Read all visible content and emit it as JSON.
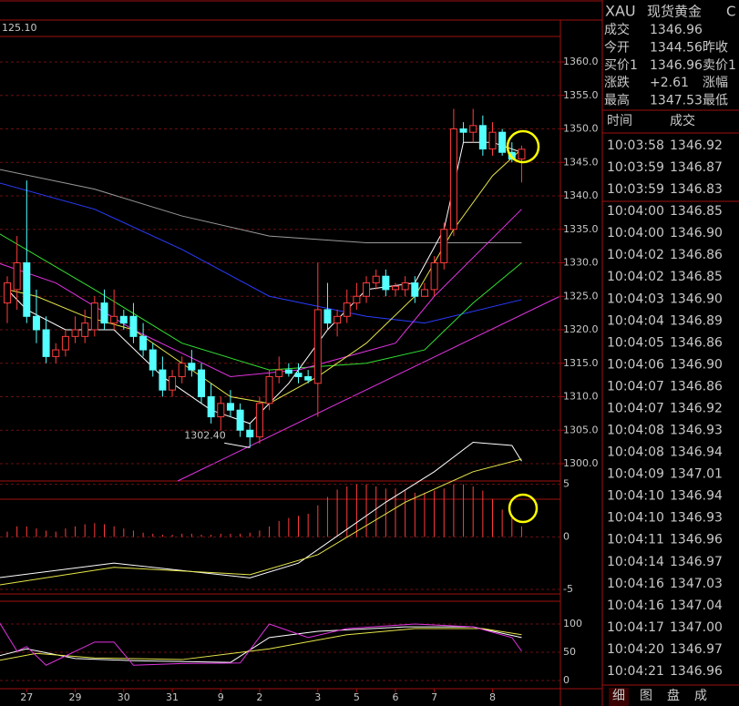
{
  "chart_data": {
    "type": "candlestick",
    "corner_label": "125.10",
    "low_annotation": {
      "label": "1302.40",
      "index": 25
    },
    "up_color": "#ff3c3c",
    "down_color": "#54ffff",
    "candles": [
      [
        1324,
        1328,
        1321,
        1327
      ],
      [
        1326,
        1334,
        1323,
        1330
      ],
      [
        1330,
        1342.3,
        1321,
        1322
      ],
      [
        1322,
        1326,
        1318,
        1320
      ],
      [
        1320,
        1322,
        1315,
        1316
      ],
      [
        1316,
        1318,
        1315,
        1317
      ],
      [
        1317,
        1320,
        1316,
        1319
      ],
      [
        1319,
        1322,
        1318,
        1320
      ],
      [
        1319,
        1323,
        1318,
        1321
      ],
      [
        1320,
        1325,
        1319,
        1324
      ],
      [
        1324,
        1326,
        1320,
        1321
      ],
      [
        1321,
        1326,
        1320,
        1322
      ],
      [
        1322,
        1323,
        1320,
        1321
      ],
      [
        1322,
        1324,
        1318,
        1319
      ],
      [
        1319,
        1321,
        1316,
        1317
      ],
      [
        1317,
        1318,
        1313,
        1314
      ],
      [
        1314,
        1316,
        1310,
        1311
      ],
      [
        1311,
        1314,
        1310,
        1313
      ],
      [
        1313,
        1316,
        1312,
        1315
      ],
      [
        1315,
        1317,
        1313,
        1314
      ],
      [
        1314,
        1315,
        1309,
        1310
      ],
      [
        1310,
        1312,
        1306,
        1307
      ],
      [
        1307,
        1310,
        1305,
        1309
      ],
      [
        1309,
        1311,
        1307,
        1308
      ],
      [
        1308,
        1309,
        1304,
        1305
      ],
      [
        1305,
        1306,
        1302.4,
        1304
      ],
      [
        1304,
        1310,
        1303,
        1309
      ],
      [
        1309,
        1314,
        1308,
        1313
      ],
      [
        1313,
        1316,
        1312,
        1314
      ],
      [
        1314,
        1315,
        1313,
        1313.5
      ],
      [
        1313.5,
        1315,
        1312,
        1313
      ],
      [
        1313,
        1314,
        1312,
        1312.5
      ],
      [
        1312,
        1330,
        1307,
        1323
      ],
      [
        1323,
        1327,
        1320,
        1321
      ],
      [
        1321,
        1323,
        1319,
        1322
      ],
      [
        1322,
        1326,
        1321,
        1324
      ],
      [
        1324,
        1327,
        1323,
        1325
      ],
      [
        1325,
        1328,
        1324,
        1327
      ],
      [
        1327,
        1329,
        1326,
        1328
      ],
      [
        1328,
        1329,
        1325,
        1326
      ],
      [
        1326,
        1327,
        1325,
        1326.5
      ],
      [
        1326,
        1328,
        1325,
        1327
      ],
      [
        1327,
        1328,
        1324,
        1325
      ],
      [
        1325,
        1327,
        1325,
        1326
      ],
      [
        1326,
        1331,
        1325,
        1330
      ],
      [
        1330,
        1336,
        1329,
        1335
      ],
      [
        1335,
        1353,
        1334,
        1350
      ],
      [
        1350,
        1351,
        1348,
        1349.5
      ],
      [
        1349.5,
        1353,
        1348,
        1350.5
      ],
      [
        1350.5,
        1352,
        1346,
        1347
      ],
      [
        1347,
        1351,
        1346,
        1349.5
      ],
      [
        1349.5,
        1350,
        1346,
        1346.5
      ],
      [
        1346.5,
        1348,
        1345,
        1345.5
      ],
      [
        1345.5,
        1347.5,
        1342,
        1346.96
      ]
    ],
    "ylim": [
      1300,
      1360
    ],
    "yticks": [
      {
        "value": 1300,
        "label": "1300.0"
      },
      {
        "value": 1305,
        "label": "1305.0"
      },
      {
        "value": 1310,
        "label": "1310.0"
      },
      {
        "value": 1315,
        "label": "1315.0"
      },
      {
        "value": 1320,
        "label": "1320.0"
      },
      {
        "value": 1325,
        "label": "1325.0"
      },
      {
        "value": 1330,
        "label": "1330.0"
      },
      {
        "value": 1335,
        "label": "1335.0"
      },
      {
        "value": 1340,
        "label": "1340.0"
      },
      {
        "value": 1345,
        "label": "1345.0"
      },
      {
        "value": 1350,
        "label": "1350.0"
      },
      {
        "value": 1355,
        "label": "1355.0"
      },
      {
        "value": 1360,
        "label": "1360.0"
      }
    ],
    "xticks": [
      {
        "value": 2,
        "label": "27"
      },
      {
        "value": 7,
        "label": "29"
      },
      {
        "value": 12,
        "label": "30"
      },
      {
        "value": 17,
        "label": "31"
      },
      {
        "value": 22,
        "label": "9"
      },
      {
        "value": 26,
        "label": "2"
      },
      {
        "value": 32,
        "label": "3"
      },
      {
        "value": 36,
        "label": "5"
      },
      {
        "value": 40,
        "label": "6"
      },
      {
        "value": 44,
        "label": "7"
      },
      {
        "value": 50,
        "label": "8"
      }
    ],
    "highlight_xtick": 4,
    "highlight_color": "#2ed12e",
    "ma_series": [
      {
        "color": "#9a9a9a",
        "x": [
          -1,
          9,
          18,
          27,
          37,
          46,
          53
        ],
        "values": [
          1344,
          1341,
          1337,
          1334,
          1333,
          1333,
          1333
        ]
      },
      {
        "color": "#2b3cff",
        "x": [
          -1,
          9,
          18,
          27,
          37,
          43,
          53
        ],
        "values": [
          1342,
          1338,
          1332,
          1325,
          1322,
          1321,
          1324.5
        ]
      },
      {
        "color": "#33e033",
        "x": [
          -1,
          9,
          18,
          27,
          37,
          43,
          48,
          53
        ],
        "values": [
          1334.5,
          1326,
          1318,
          1314,
          1315,
          1317,
          1324,
          1330
        ]
      },
      {
        "color": "#e033e0",
        "x": [
          -1,
          5,
          13,
          23,
          30,
          40,
          44,
          53
        ],
        "values": [
          1330,
          1327,
          1320,
          1313,
          1314,
          1318,
          1325,
          1338
        ]
      },
      {
        "color": "#e6e64a",
        "x": [
          0,
          3,
          8,
          13,
          18,
          23,
          27,
          32,
          37,
          42,
          46,
          50,
          53
        ],
        "values": [
          1326,
          1325,
          1322,
          1320,
          1315,
          1310,
          1309,
          1313,
          1318,
          1325,
          1335,
          1343,
          1347
        ]
      },
      {
        "color": "#ffffff",
        "x": [
          0,
          2,
          6,
          11,
          16,
          21,
          25,
          29,
          33,
          37,
          42,
          45,
          47,
          50,
          53
        ],
        "values": [
          1326,
          1323,
          1320,
          1320,
          1313,
          1308,
          1306,
          1312,
          1320,
          1326,
          1327,
          1335,
          1348,
          1348,
          1346.5
        ]
      }
    ],
    "macd": {
      "ylim": [
        -5,
        10
      ],
      "yticks": [
        -5,
        0,
        5
      ],
      "histogram": [
        0.5,
        1,
        1,
        0.8,
        0.6,
        0.5,
        0.8,
        1,
        1.2,
        1.3,
        1.2,
        1,
        0.8,
        0.6,
        0.4,
        0.3,
        0.2,
        0.2,
        0.3,
        0.3,
        0.2,
        0.2,
        0.3,
        0.3,
        0.3,
        0.4,
        0.6,
        1,
        1.5,
        1.8,
        2,
        2.2,
        3,
        3.8,
        4.5,
        4.8,
        5,
        5,
        4.8,
        4.6,
        4.6,
        4.4,
        4.2,
        4.2,
        4.4,
        4.6,
        5,
        5,
        4.8,
        4.4,
        3.6,
        2.6,
        1.8,
        1
      ],
      "lines": [
        {
          "color": "#ffffff",
          "x": [
            -1,
            11,
            25,
            30,
            39,
            44,
            48,
            52,
            53
          ],
          "values": [
            -3.9,
            -2.5,
            -3.9,
            -2.5,
            3.3,
            6.2,
            9,
            8.7,
            7.2
          ]
        },
        {
          "color": "#e6e64a",
          "x": [
            -1,
            11,
            25,
            32,
            41,
            48,
            53
          ],
          "values": [
            -4.6,
            -2.9,
            -3.6,
            -1.7,
            3.3,
            6.2,
            7.4
          ]
        }
      ]
    },
    "kdj": {
      "ylim": [
        0,
        120
      ],
      "yticks": [
        0,
        50,
        100
      ],
      "lines": [
        {
          "color": "#ffffff",
          "x": [
            -1,
            2,
            7,
            13,
            23,
            27,
            32,
            41,
            48,
            53
          ],
          "values": [
            43,
            56,
            39,
            35,
            32,
            76,
            87,
            95,
            95,
            76
          ]
        },
        {
          "color": "#e6e64a",
          "x": [
            -1,
            3,
            9,
            18,
            27,
            35,
            42,
            49,
            53
          ],
          "values": [
            35,
            48,
            40,
            37,
            56,
            81,
            92,
            92,
            81
          ]
        },
        {
          "color": "#e033e0",
          "x": [
            -1,
            1,
            2,
            4,
            9,
            11,
            13,
            18,
            24,
            27,
            31,
            35,
            42,
            48,
            52,
            53
          ],
          "values": [
            108,
            52,
            60,
            27,
            68,
            68,
            27,
            30,
            31,
            100,
            76,
            92,
            100,
            95,
            76,
            52
          ]
        }
      ]
    }
  },
  "quote_panel": {
    "header": {
      "symbol": "XAU",
      "name": "现货黄金",
      "extra": "C"
    },
    "rows": [
      [
        "成交",
        "1346.96",
        ""
      ],
      [
        "今开",
        "1344.56",
        "昨收"
      ],
      [
        "买价1",
        "1346.96",
        "卖价1"
      ],
      [
        "涨跌",
        "+2.61",
        "涨幅"
      ],
      [
        "最高",
        "1347.53",
        "最低"
      ]
    ],
    "list_header": [
      "时间",
      "成交"
    ],
    "trades": [
      [
        "10:03:58",
        "1346.92"
      ],
      [
        "10:03:59",
        "1346.87"
      ],
      [
        "10:03:59",
        "1346.83"
      ],
      [
        "10:04:00",
        "1346.85"
      ],
      [
        "10:04:00",
        "1346.90"
      ],
      [
        "10:04:02",
        "1346.86"
      ],
      [
        "10:04:02",
        "1346.85"
      ],
      [
        "10:04:03",
        "1346.90"
      ],
      [
        "10:04:04",
        "1346.89"
      ],
      [
        "10:04:05",
        "1346.86"
      ],
      [
        "10:04:06",
        "1346.90"
      ],
      [
        "10:04:07",
        "1346.86"
      ],
      [
        "10:04:07",
        "1346.92"
      ],
      [
        "10:04:08",
        "1346.93"
      ],
      [
        "10:04:08",
        "1346.94"
      ],
      [
        "10:04:09",
        "1347.01"
      ],
      [
        "10:04:10",
        "1346.94"
      ],
      [
        "10:04:10",
        "1346.93"
      ],
      [
        "10:04:11",
        "1346.96"
      ],
      [
        "10:04:14",
        "1346.97"
      ],
      [
        "10:04:16",
        "1347.03"
      ],
      [
        "10:04:16",
        "1347.04"
      ],
      [
        "10:04:17",
        "1347.00"
      ],
      [
        "10:04:20",
        "1346.97"
      ],
      [
        "10:04:21",
        "1346.96"
      ]
    ],
    "tabs": [
      "细",
      "图",
      "盘",
      "成"
    ]
  }
}
